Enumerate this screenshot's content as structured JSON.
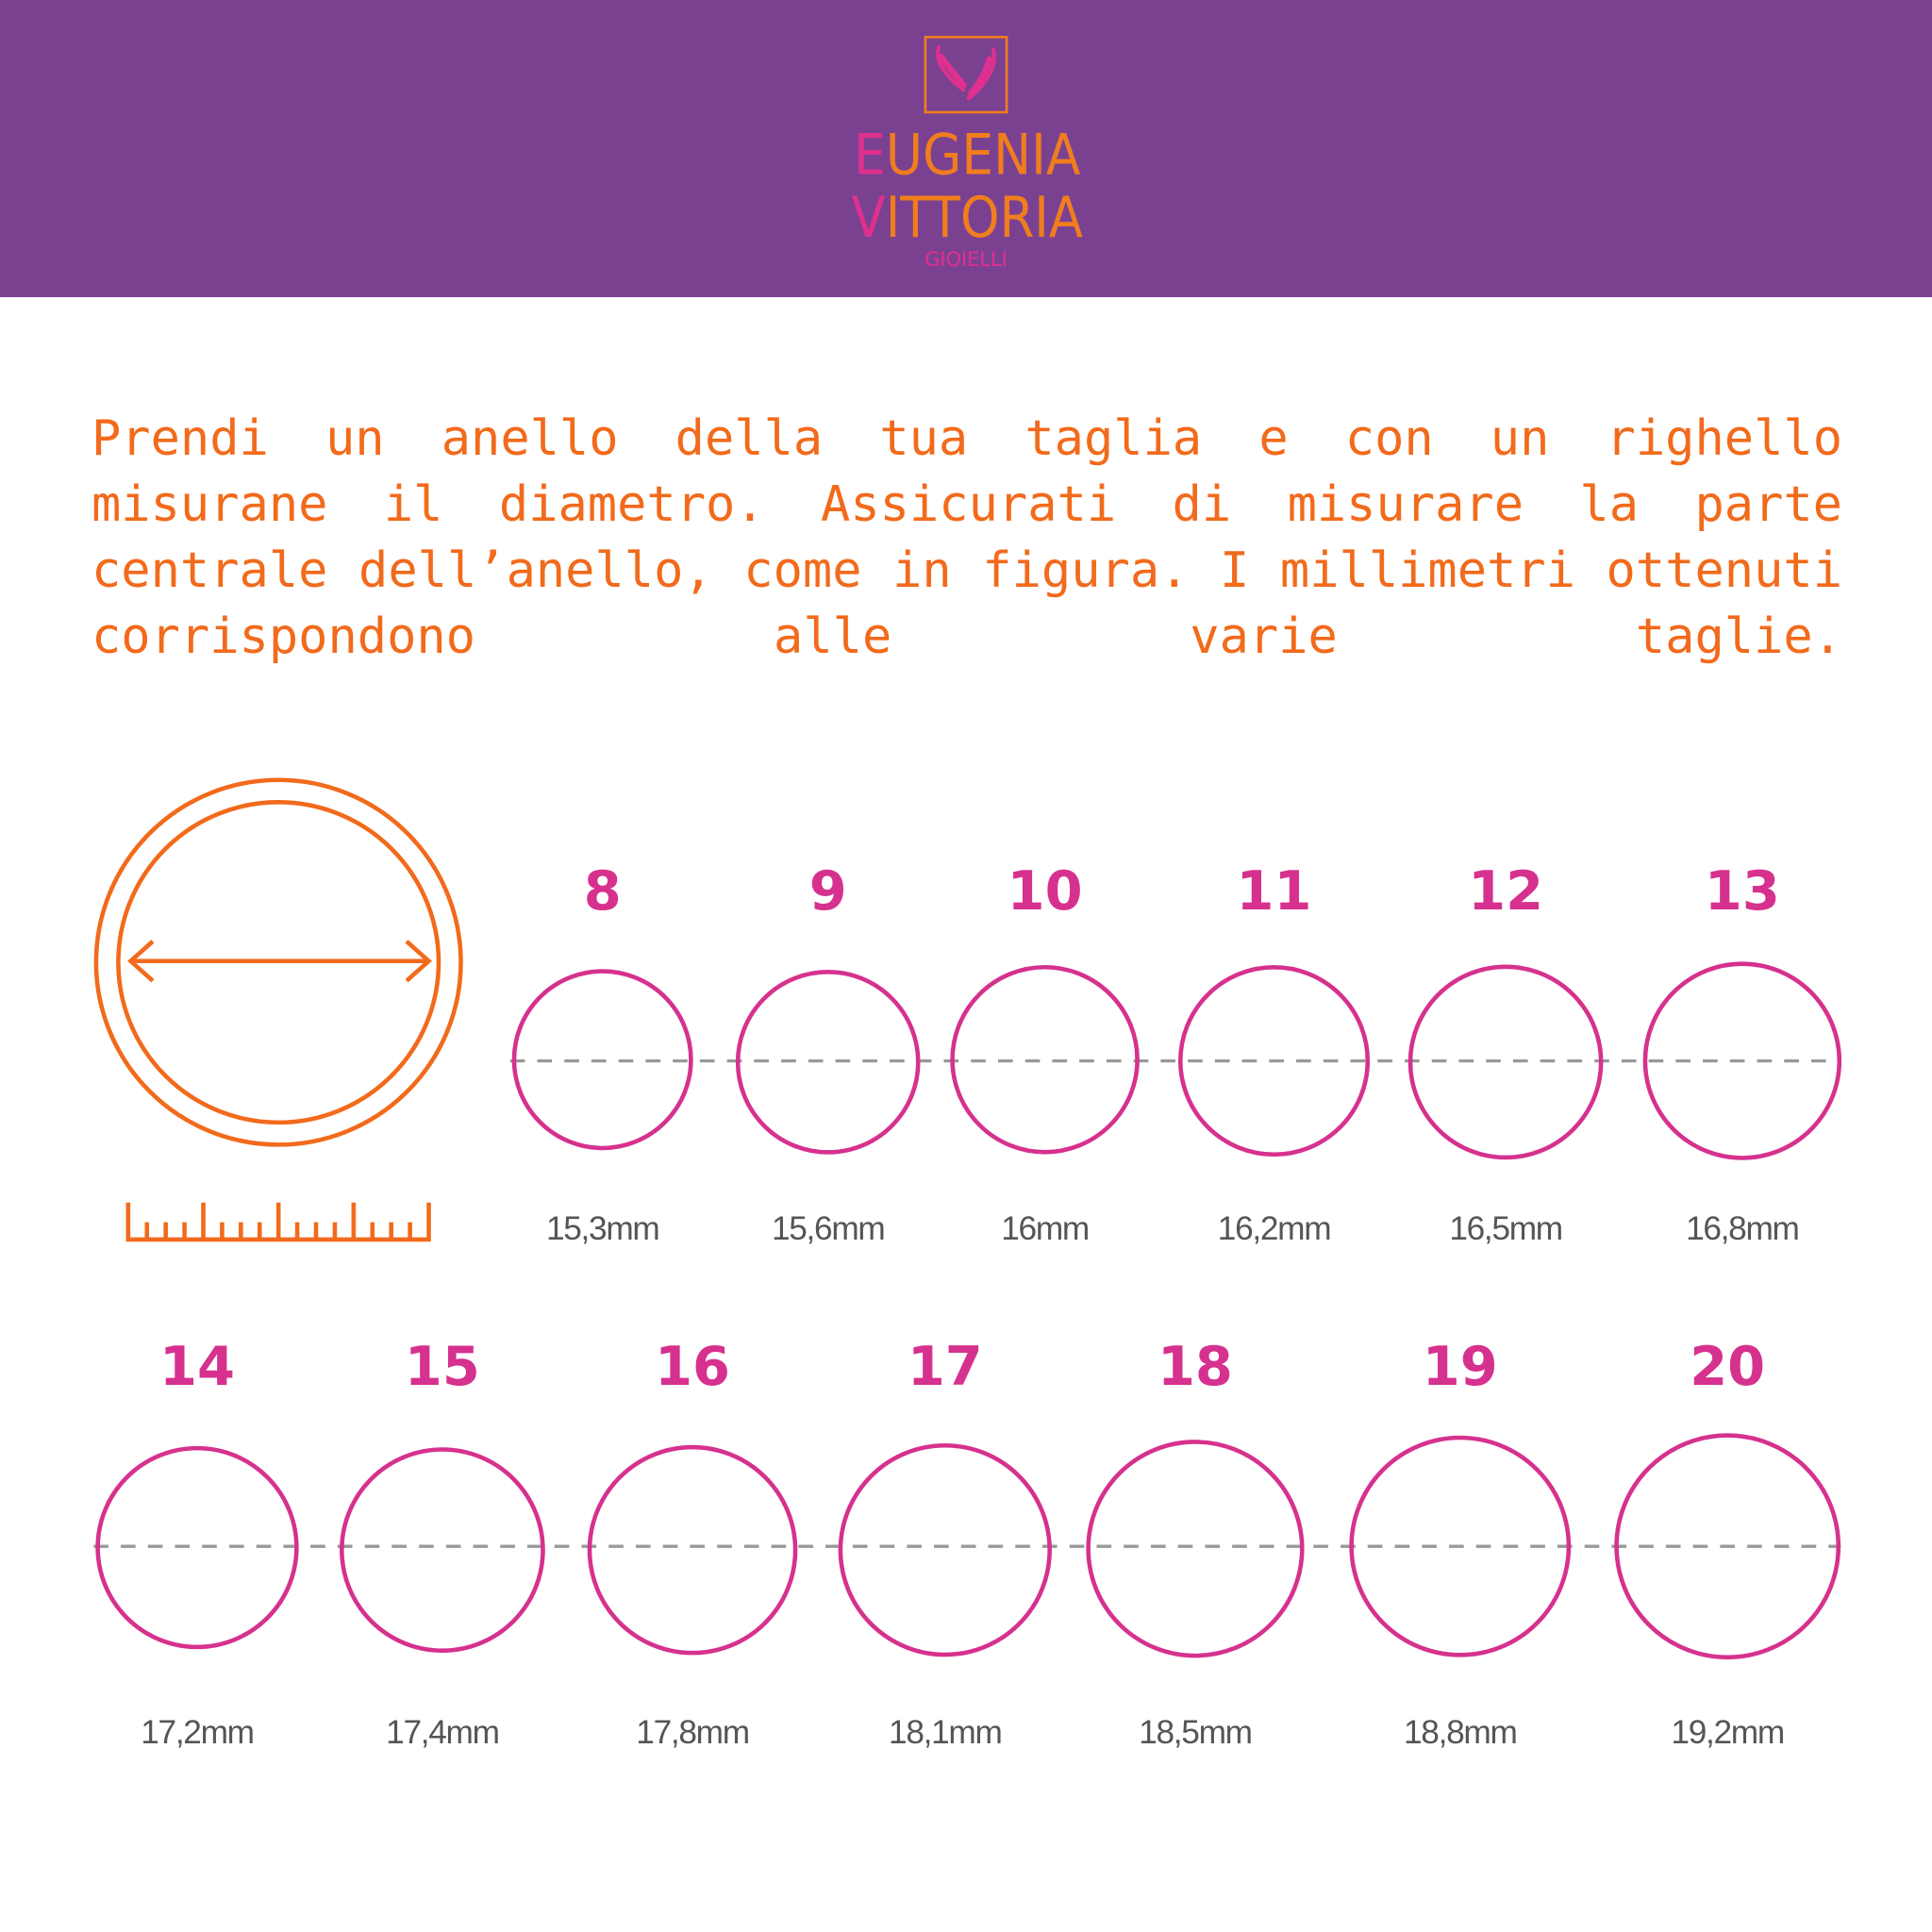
{
  "header": {
    "brand_line1": "EUGENIA",
    "brand_line2": "VITTORIA",
    "brand_sub": "GIOIELLI",
    "background_color": "#7b4191",
    "logo_icon": "two-fish-icon"
  },
  "intro": {
    "text": "Prendi un anello della tua taglia e con un righello misurane il diametro. Assicurati di misurare la parte centrale dell’anello, come in figura. I millimetri ottenuti corrispondono alle varie taglie."
  },
  "illustration": {
    "ring_icon": "ring-diameter-icon",
    "ruler_icon": "ruler-icon",
    "color": "#f26a1b"
  },
  "sizes": [
    {
      "size": "8",
      "diameter": "15,3mm"
    },
    {
      "size": "9",
      "diameter": "15,6mm"
    },
    {
      "size": "10",
      "diameter": "16mm"
    },
    {
      "size": "11",
      "diameter": "16,2mm"
    },
    {
      "size": "12",
      "diameter": "16,5mm"
    },
    {
      "size": "13",
      "diameter": "16,8mm"
    },
    {
      "size": "14",
      "diameter": "17,2mm"
    },
    {
      "size": "15",
      "diameter": "17,4mm"
    },
    {
      "size": "16",
      "diameter": "17,8mm"
    },
    {
      "size": "17",
      "diameter": "18,1mm"
    },
    {
      "size": "18",
      "diameter": "18,5mm"
    },
    {
      "size": "19",
      "diameter": "18,8mm"
    },
    {
      "size": "20",
      "diameter": "19,2mm"
    }
  ],
  "colors": {
    "circle": "#d6318e",
    "number": "#d6318e",
    "dashed_line": "#999999"
  }
}
